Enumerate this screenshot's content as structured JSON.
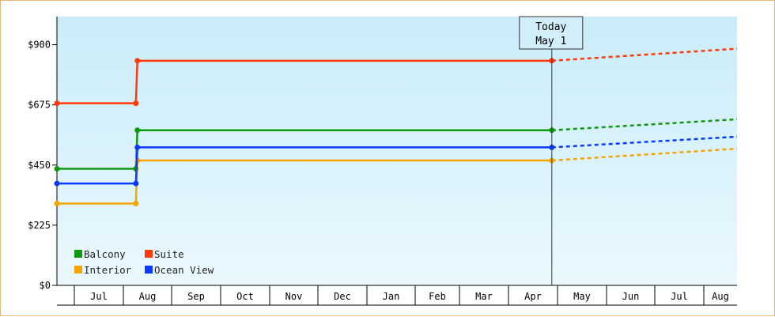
{
  "chart_data": {
    "type": "line",
    "title": "",
    "xlabel": "",
    "ylabel": "",
    "y_ticks": [
      "$0",
      "$225",
      "$450",
      "$675",
      "$900"
    ],
    "ylim": [
      0,
      1005
    ],
    "x_tick_labels": [
      "Jul",
      "Aug",
      "Sep",
      "Oct",
      "Nov",
      "Dec",
      "Jan",
      "Feb",
      "Mar",
      "Apr",
      "May",
      "Jun",
      "Jul",
      "Aug"
    ],
    "xlim": [
      "2023-06-10",
      "2024-08-31"
    ],
    "today": {
      "line1": "Today",
      "line2": "May 1",
      "date": "2024-05-01"
    },
    "grid": false,
    "legend_position": "bottom-left",
    "series": [
      {
        "name": "Balcony",
        "color": "#109910",
        "points": [
          [
            "2023-06-10",
            436
          ],
          [
            "2023-08-01",
            436
          ],
          [
            "2023-08-02",
            580
          ],
          [
            "2024-05-01",
            580
          ]
        ],
        "forecast": [
          [
            "2024-05-01",
            580
          ],
          [
            "2024-08-31",
            621
          ]
        ]
      },
      {
        "name": "Suite",
        "color": "#ff3a0a",
        "points": [
          [
            "2023-06-10",
            681
          ],
          [
            "2023-08-01",
            681
          ],
          [
            "2023-08-02",
            840
          ],
          [
            "2024-05-01",
            840
          ]
        ],
        "forecast": [
          [
            "2024-05-01",
            840
          ],
          [
            "2024-08-31",
            885
          ]
        ]
      },
      {
        "name": "Interior",
        "color": "#f5a500",
        "points": [
          [
            "2023-06-10",
            306
          ],
          [
            "2023-08-01",
            306
          ],
          [
            "2023-08-02",
            467
          ],
          [
            "2024-05-01",
            467
          ]
        ],
        "forecast": [
          [
            "2024-05-01",
            467
          ],
          [
            "2024-08-31",
            511
          ]
        ]
      },
      {
        "name": "Ocean View",
        "color": "#0a3aff",
        "points": [
          [
            "2023-06-10",
            381
          ],
          [
            "2023-08-01",
            381
          ],
          [
            "2023-08-02",
            516
          ],
          [
            "2024-05-01",
            516
          ]
        ],
        "forecast": [
          [
            "2024-05-01",
            516
          ],
          [
            "2024-08-31",
            556
          ]
        ]
      }
    ]
  }
}
